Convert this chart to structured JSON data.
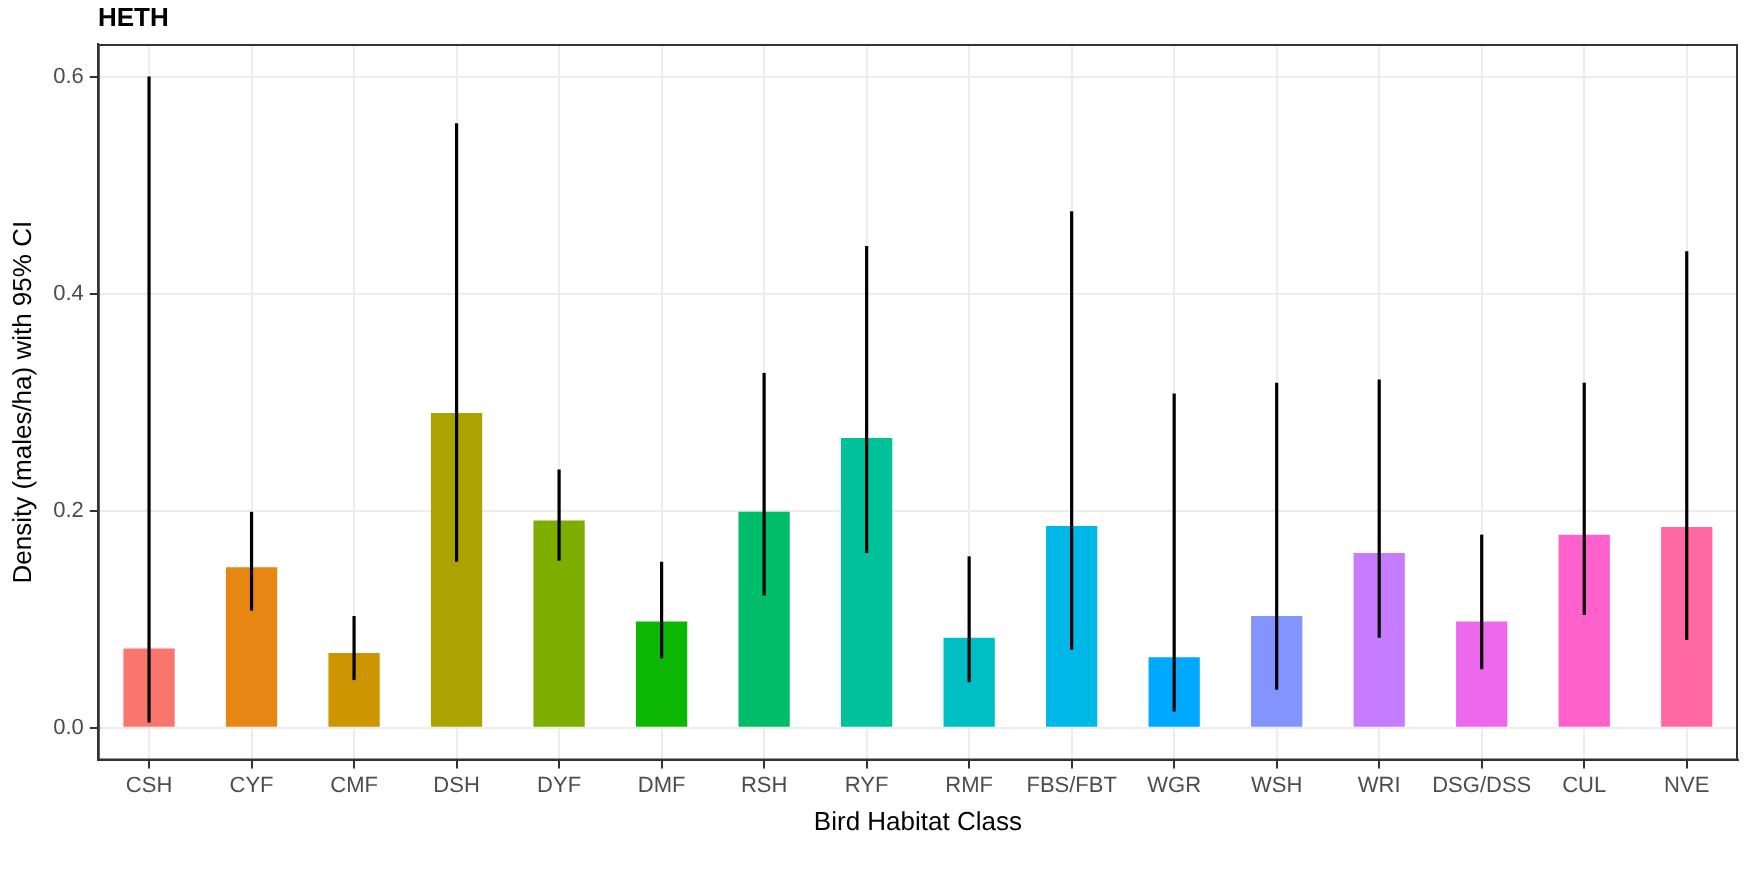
{
  "chart_data": {
    "type": "bar",
    "title": "HETH",
    "xlabel": "Bird Habitat Class",
    "ylabel": "Density (males/ha) with 95% CI",
    "categories": [
      "CSH",
      "CYF",
      "CMF",
      "DSH",
      "DYF",
      "DMF",
      "RSH",
      "RYF",
      "RMF",
      "FBS/FBT",
      "WGR",
      "WSH",
      "WRI",
      "DSG/DSS",
      "CUL",
      "NVE"
    ],
    "values": [
      0.073,
      0.148,
      0.069,
      0.29,
      0.191,
      0.098,
      0.199,
      0.267,
      0.083,
      0.186,
      0.065,
      0.103,
      0.161,
      0.098,
      0.178,
      0.185
    ],
    "colors": [
      "#F8766D",
      "#E68613",
      "#CD9600",
      "#ABA300",
      "#7CAE00",
      "#0CB702",
      "#00BE67",
      "#00C19A",
      "#00BFC4",
      "#00B8E7",
      "#00A9FF",
      "#8494FF",
      "#C77CFF",
      "#ED68ED",
      "#FF61CC",
      "#FF68A1"
    ],
    "errors": [
      [
        0.005,
        0.6
      ],
      [
        0.108,
        0.199
      ],
      [
        0.044,
        0.103
      ],
      [
        0.153,
        0.557
      ],
      [
        0.154,
        0.238
      ],
      [
        0.064,
        0.153
      ],
      [
        0.122,
        0.327
      ],
      [
        0.161,
        0.444
      ],
      [
        0.042,
        0.158
      ],
      [
        0.072,
        0.476
      ],
      [
        0.015,
        0.308
      ],
      [
        0.035,
        0.318
      ],
      [
        0.083,
        0.321
      ],
      [
        0.054,
        0.178
      ],
      [
        0.104,
        0.318
      ],
      [
        0.081,
        0.439
      ]
    ],
    "ylim": [
      -0.03,
      0.63
    ],
    "yticks": [
      {
        "value": 0,
        "label": "0.0"
      },
      0.2,
      0.4,
      0.6
    ],
    "grid": true
  }
}
